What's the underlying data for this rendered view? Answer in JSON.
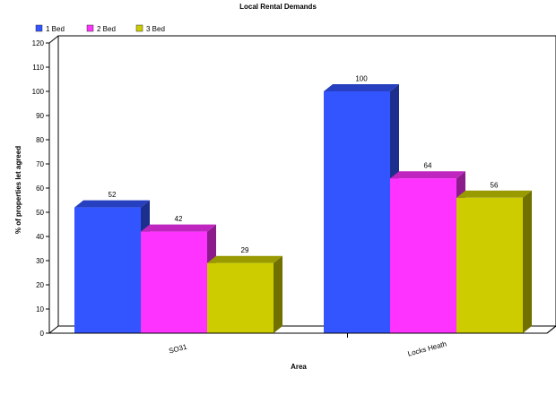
{
  "chart_data": {
    "type": "bar",
    "title": "Local Rental Demands",
    "xlabel": "Area",
    "ylabel": "% of properties let agreed",
    "categories": [
      "SO31",
      "Locks Heath"
    ],
    "series": [
      {
        "name": "1 Bed",
        "values": [
          52,
          100
        ],
        "color": "#3355ff"
      },
      {
        "name": "2 Bed",
        "values": [
          42,
          64
        ],
        "color": "#ff33ff"
      },
      {
        "name": "3 Bed",
        "values": [
          29,
          56
        ],
        "color": "#cccc00"
      }
    ],
    "ylim": [
      0,
      120
    ],
    "yticks": [
      0,
      10,
      20,
      30,
      40,
      50,
      60,
      70,
      80,
      90,
      100,
      110,
      120
    ],
    "legend_position": "top-left",
    "grid": false,
    "style": "3d"
  }
}
